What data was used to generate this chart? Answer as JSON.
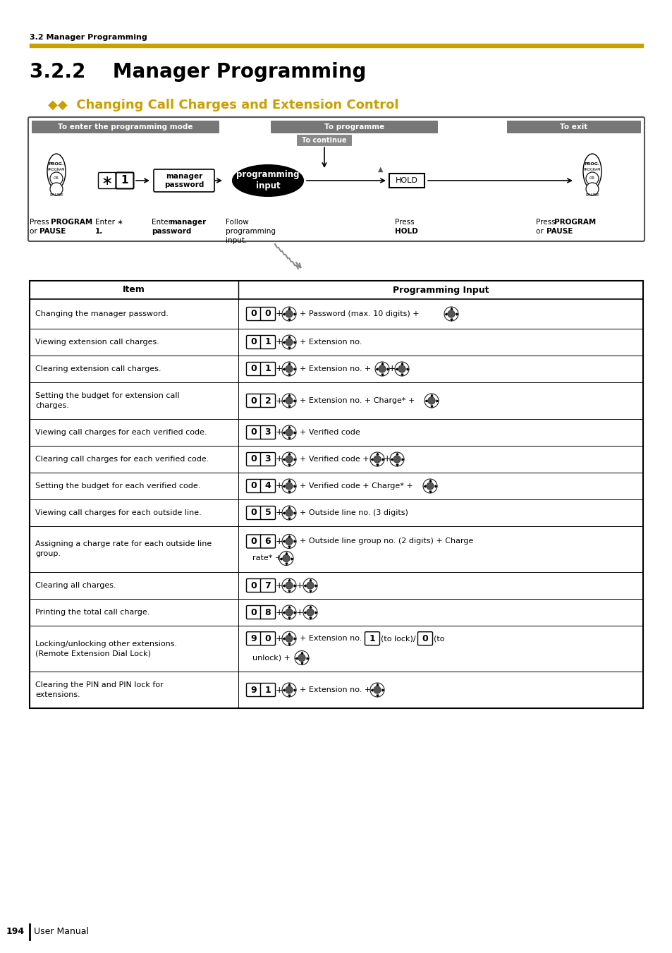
{
  "page_header": "3.2 Manager Programming",
  "section_title": "3.2.2    Manager Programming",
  "subsection_title": "◆◆  Changing Call Charges and Extension Control",
  "subsection_color": "#c8a000",
  "gold_bar_color": "#c8a000",
  "background_color": "#ffffff",
  "footer_page": "194",
  "footer_text": "User Manual",
  "table_rows": [
    {
      "item": "Changing the manager password.",
      "cmd": [
        "0",
        "0"
      ],
      "input_type": 0
    },
    {
      "item": "Viewing extension call charges.",
      "cmd": [
        "0",
        "1"
      ],
      "input_type": 1
    },
    {
      "item": "Clearing extension call charges.",
      "cmd": [
        "0",
        "1"
      ],
      "input_type": 2
    },
    {
      "item": "Setting the budget for extension call\ncharges.",
      "cmd": [
        "0",
        "2"
      ],
      "input_type": 3
    },
    {
      "item": "Viewing call charges for each verified code.",
      "cmd": [
        "0",
        "3"
      ],
      "input_type": 4
    },
    {
      "item": "Clearing call charges for each verified code.",
      "cmd": [
        "0",
        "3"
      ],
      "input_type": 5
    },
    {
      "item": "Setting the budget for each verified code.",
      "cmd": [
        "0",
        "4"
      ],
      "input_type": 6
    },
    {
      "item": "Viewing call charges for each outside line.",
      "cmd": [
        "0",
        "5"
      ],
      "input_type": 7
    },
    {
      "item": "Assigning a charge rate for each outside line\ngroup.",
      "cmd": [
        "0",
        "6"
      ],
      "input_type": 8
    },
    {
      "item": "Clearing all charges.",
      "cmd": [
        "0",
        "7"
      ],
      "input_type": 9
    },
    {
      "item": "Printing the total call charge.",
      "cmd": [
        "0",
        "8"
      ],
      "input_type": 10
    },
    {
      "item": "Locking/unlocking other extensions.\n(Remote Extension Dial Lock)",
      "cmd": [
        "9",
        "0"
      ],
      "input_type": 11
    },
    {
      "item": "Clearing the PIN and PIN lock for\nextensions.",
      "cmd": [
        "9",
        "1"
      ],
      "input_type": 12
    }
  ]
}
